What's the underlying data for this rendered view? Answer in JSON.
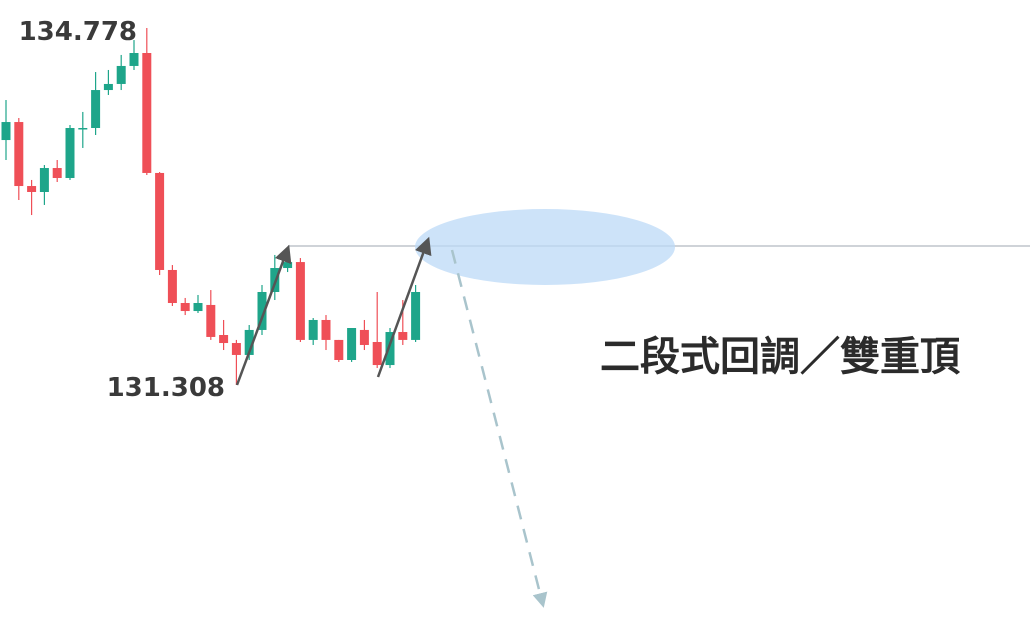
{
  "chart_data": {
    "type": "candlestick",
    "up_color": "#1ea58a",
    "down_color": "#ef4f57",
    "open": [
      133.689,
      133.864,
      133.242,
      133.184,
      133.417,
      133.32,
      133.806,
      133.806,
      134.175,
      134.234,
      134.409,
      134.535,
      133.369,
      132.426,
      132.105,
      132.027,
      132.086,
      131.794,
      131.716,
      131.6,
      131.843,
      132.212,
      132.445,
      132.503,
      131.746,
      131.94,
      131.746,
      131.551,
      131.843,
      131.726,
      131.502,
      131.823,
      131.746
    ],
    "high": [
      134.078,
      133.903,
      133.301,
      133.446,
      133.495,
      133.835,
      133.962,
      134.35,
      134.37,
      134.516,
      134.661,
      134.778,
      133.378,
      132.474,
      132.154,
      132.183,
      132.231,
      131.94,
      131.746,
      131.891,
      132.28,
      132.572,
      132.62,
      132.542,
      131.959,
      131.988,
      131.746,
      131.862,
      131.94,
      132.212,
      131.862,
      132.134,
      132.28
    ],
    "low": [
      133.495,
      133.106,
      132.96,
      133.058,
      133.281,
      133.301,
      133.612,
      133.738,
      134.127,
      134.175,
      134.37,
      133.349,
      132.377,
      132.076,
      131.988,
      132.008,
      131.746,
      131.648,
      131.308,
      131.551,
      131.794,
      132.134,
      132.406,
      131.726,
      131.697,
      131.648,
      131.532,
      131.532,
      131.648,
      131.473,
      131.473,
      131.697,
      131.726
    ],
    "close": [
      133.864,
      133.242,
      133.184,
      133.417,
      133.32,
      133.806,
      133.806,
      134.175,
      134.234,
      134.409,
      134.535,
      133.369,
      132.426,
      132.105,
      132.027,
      132.105,
      131.775,
      131.716,
      131.6,
      131.843,
      132.212,
      132.445,
      132.503,
      131.746,
      131.94,
      131.746,
      131.551,
      131.862,
      131.697,
      131.502,
      131.823,
      131.746,
      132.212
    ],
    "level": 132.659,
    "level_color": "#cfd3d8",
    "annotations": [
      "134.778",
      "131.308"
    ],
    "title": "二段式回調／雙重頂"
  }
}
